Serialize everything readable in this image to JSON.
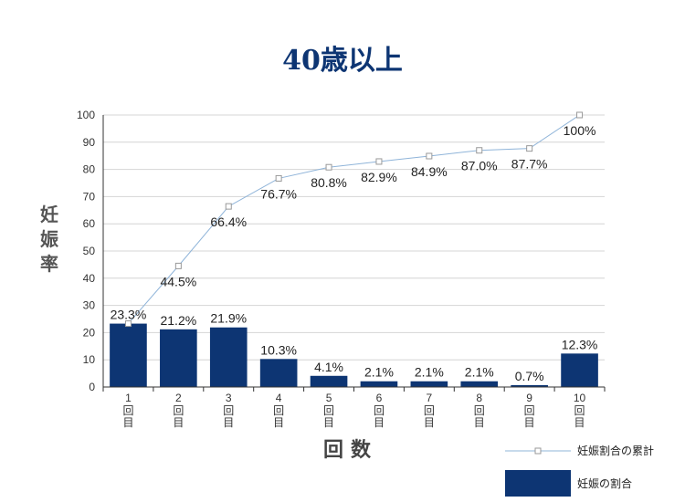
{
  "chart_data": {
    "type": "bar",
    "title": "40歳以上",
    "ylabel": "妊娠率",
    "xlabel": "回数",
    "ylim": [
      0,
      100
    ],
    "yticks": [
      0,
      10,
      20,
      30,
      40,
      50,
      60,
      70,
      80,
      90,
      100
    ],
    "categories": [
      "1",
      "2",
      "3",
      "4",
      "5",
      "6",
      "7",
      "8",
      "9",
      "10"
    ],
    "category_suffix": [
      "回",
      "目"
    ],
    "grid": true,
    "legend_position": "bottom-right",
    "series": [
      {
        "name": "妊娠の割合",
        "type": "bar",
        "color": "#0d3573",
        "values": [
          23.3,
          21.2,
          21.9,
          10.3,
          4.1,
          2.1,
          2.1,
          2.1,
          0.7,
          12.3
        ],
        "labels": [
          "23.3%",
          "21.2%",
          "21.9%",
          "10.3%",
          "4.1%",
          "2.1%",
          "2.1%",
          "2.1%",
          "0.7%",
          "12.3%"
        ]
      },
      {
        "name": "妊娠割合の累計",
        "type": "line",
        "color": "#8fb4d9",
        "marker_color": "#999999",
        "values": [
          23.3,
          44.5,
          66.4,
          76.7,
          80.8,
          82.9,
          84.9,
          87.0,
          87.7,
          100
        ],
        "labels": [
          "",
          "44.5%",
          "66.4%",
          "76.7%",
          "80.8%",
          "82.9%",
          "84.9%",
          "87.0%",
          "87.7%",
          "100%"
        ]
      }
    ]
  }
}
